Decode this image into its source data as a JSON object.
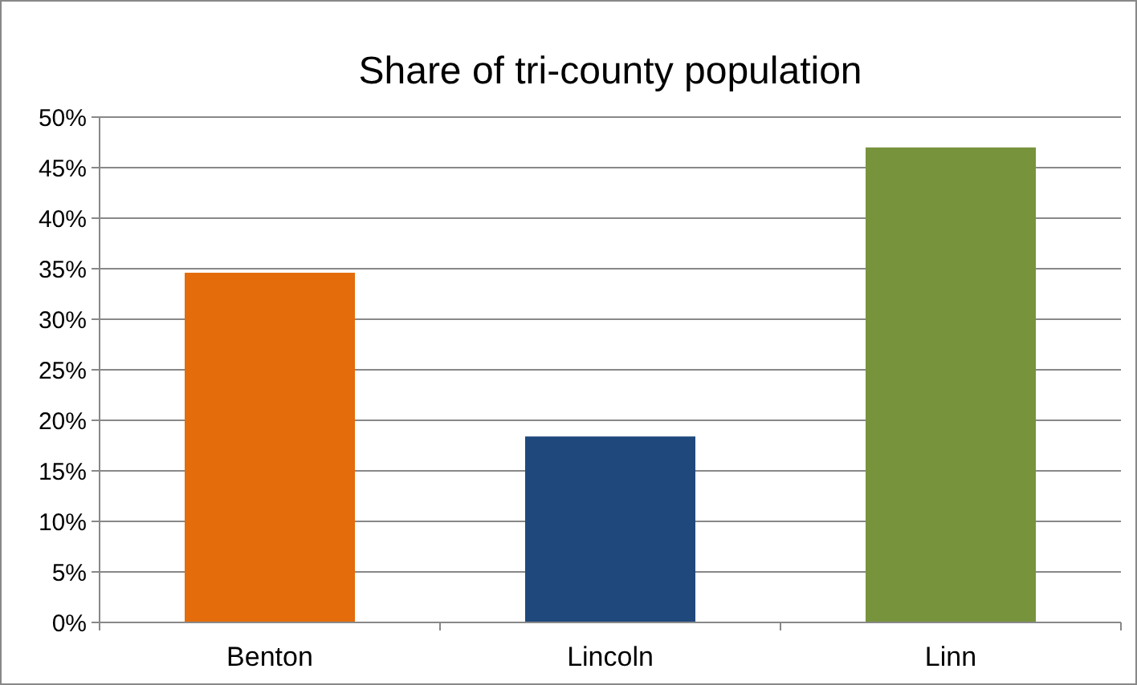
{
  "chart_data": {
    "type": "bar",
    "title": "Share of tri-county population",
    "categories": [
      "Benton",
      "Lincoln",
      "Linn"
    ],
    "values": [
      34.6,
      18.4,
      47.0
    ],
    "colors": [
      "#e46c0a",
      "#1f497d",
      "#77933c"
    ],
    "ylim": [
      0,
      50
    ],
    "yticks": [
      {
        "value": 0,
        "label": "0%"
      },
      {
        "value": 5,
        "label": "5%"
      },
      {
        "value": 10,
        "label": "10%"
      },
      {
        "value": 15,
        "label": "15%"
      },
      {
        "value": 20,
        "label": "20%"
      },
      {
        "value": 25,
        "label": "25%"
      },
      {
        "value": 30,
        "label": "30%"
      },
      {
        "value": 35,
        "label": "35%"
      },
      {
        "value": 40,
        "label": "40%"
      },
      {
        "value": 45,
        "label": "45%"
      },
      {
        "value": 50,
        "label": "50%"
      }
    ],
    "grid": "y"
  }
}
